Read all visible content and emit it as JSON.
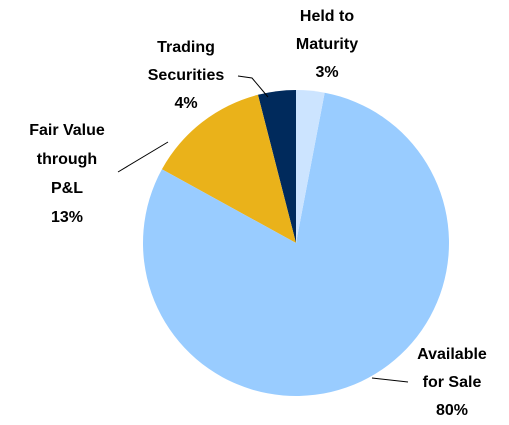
{
  "chart_data": {
    "type": "pie",
    "categories": [
      "Held to Maturity",
      "Available for Sale",
      "Fair Value through P&L",
      "Trading Securities"
    ],
    "values": [
      3,
      80,
      13,
      4
    ],
    "value_labels": [
      "3%",
      "80%",
      "13%",
      "4%"
    ],
    "colors": [
      "#cce4ff",
      "#99ccff",
      "#eab21a",
      "#002a5c"
    ]
  }
}
